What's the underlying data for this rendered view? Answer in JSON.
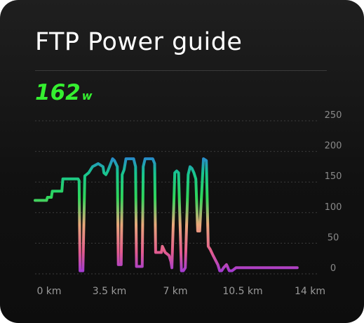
{
  "card": {
    "title": "FTP Power guide",
    "current_power": "162",
    "current_power_unit": "w",
    "accent_color": "#35f030"
  },
  "chart_data": {
    "type": "line",
    "title": "FTP Power guide",
    "xlabel": "",
    "ylabel": "",
    "ylim": [
      0,
      250
    ],
    "xlim": [
      0,
      14
    ],
    "y_ticks": [
      "250",
      "200",
      "150",
      "100",
      "50",
      "0"
    ],
    "y_tick_values": [
      250,
      200,
      150,
      100,
      50,
      0
    ],
    "x_ticks": [
      "0 km",
      "3.5 km",
      "7 km",
      "10.5 km",
      "14 km"
    ],
    "x_tick_values": [
      0,
      3.5,
      7,
      10.5,
      14
    ],
    "grid": true,
    "gradient_colors": [
      "#9b37d8",
      "#e35c8e",
      "#e9a87a",
      "#2fd65a",
      "#18c58f",
      "#2f6fe3"
    ],
    "series": [
      {
        "x": [
          0,
          0.6,
          0.65,
          0.85,
          0.9,
          1.4,
          1.45,
          2.25,
          2.3,
          2.35,
          2.5,
          2.6,
          2.8,
          3.0,
          3.3,
          3.55,
          3.6,
          3.7,
          3.8,
          3.95,
          4.05,
          4.15,
          4.3,
          4.35,
          4.5,
          4.55,
          4.65,
          4.75,
          5.15,
          5.25,
          5.3,
          5.6,
          5.65,
          5.75,
          6.15,
          6.25,
          6.3,
          6.6,
          6.65,
          6.8,
          7.0,
          7.1,
          7.15,
          7.3,
          7.4,
          7.5,
          7.65,
          7.75,
          7.85,
          8.0,
          8.1,
          8.2,
          8.3,
          8.4,
          8.5,
          8.6,
          8.8,
          8.95,
          9.05,
          9.15,
          9.3,
          9.55,
          9.65,
          9.75,
          9.85,
          10.0,
          10.05,
          10.1,
          10.15,
          10.25,
          10.3,
          10.5,
          10.65,
          10.9,
          11.1,
          11.5,
          11.6,
          11.9,
          12.1,
          12.6,
          12.7,
          13.7
        ],
        "y": [
          120,
          120,
          125,
          125,
          135,
          135,
          155,
          155,
          152,
          5,
          5,
          160,
          165,
          175,
          180,
          175,
          165,
          162,
          168,
          180,
          188,
          185,
          175,
          15,
          15,
          162,
          170,
          188,
          188,
          175,
          12,
          12,
          175,
          188,
          188,
          180,
          35,
          35,
          45,
          35,
          30,
          20,
          10,
          165,
          168,
          165,
          5,
          5,
          10,
          162,
          175,
          172,
          165,
          155,
          70,
          70,
          188,
          185,
          45,
          40,
          30,
          15,
          5,
          5,
          10,
          15,
          12,
          8,
          5,
          5,
          5,
          10,
          10,
          10,
          10,
          10,
          10,
          10,
          10,
          10,
          10,
          10
        ]
      }
    ]
  }
}
